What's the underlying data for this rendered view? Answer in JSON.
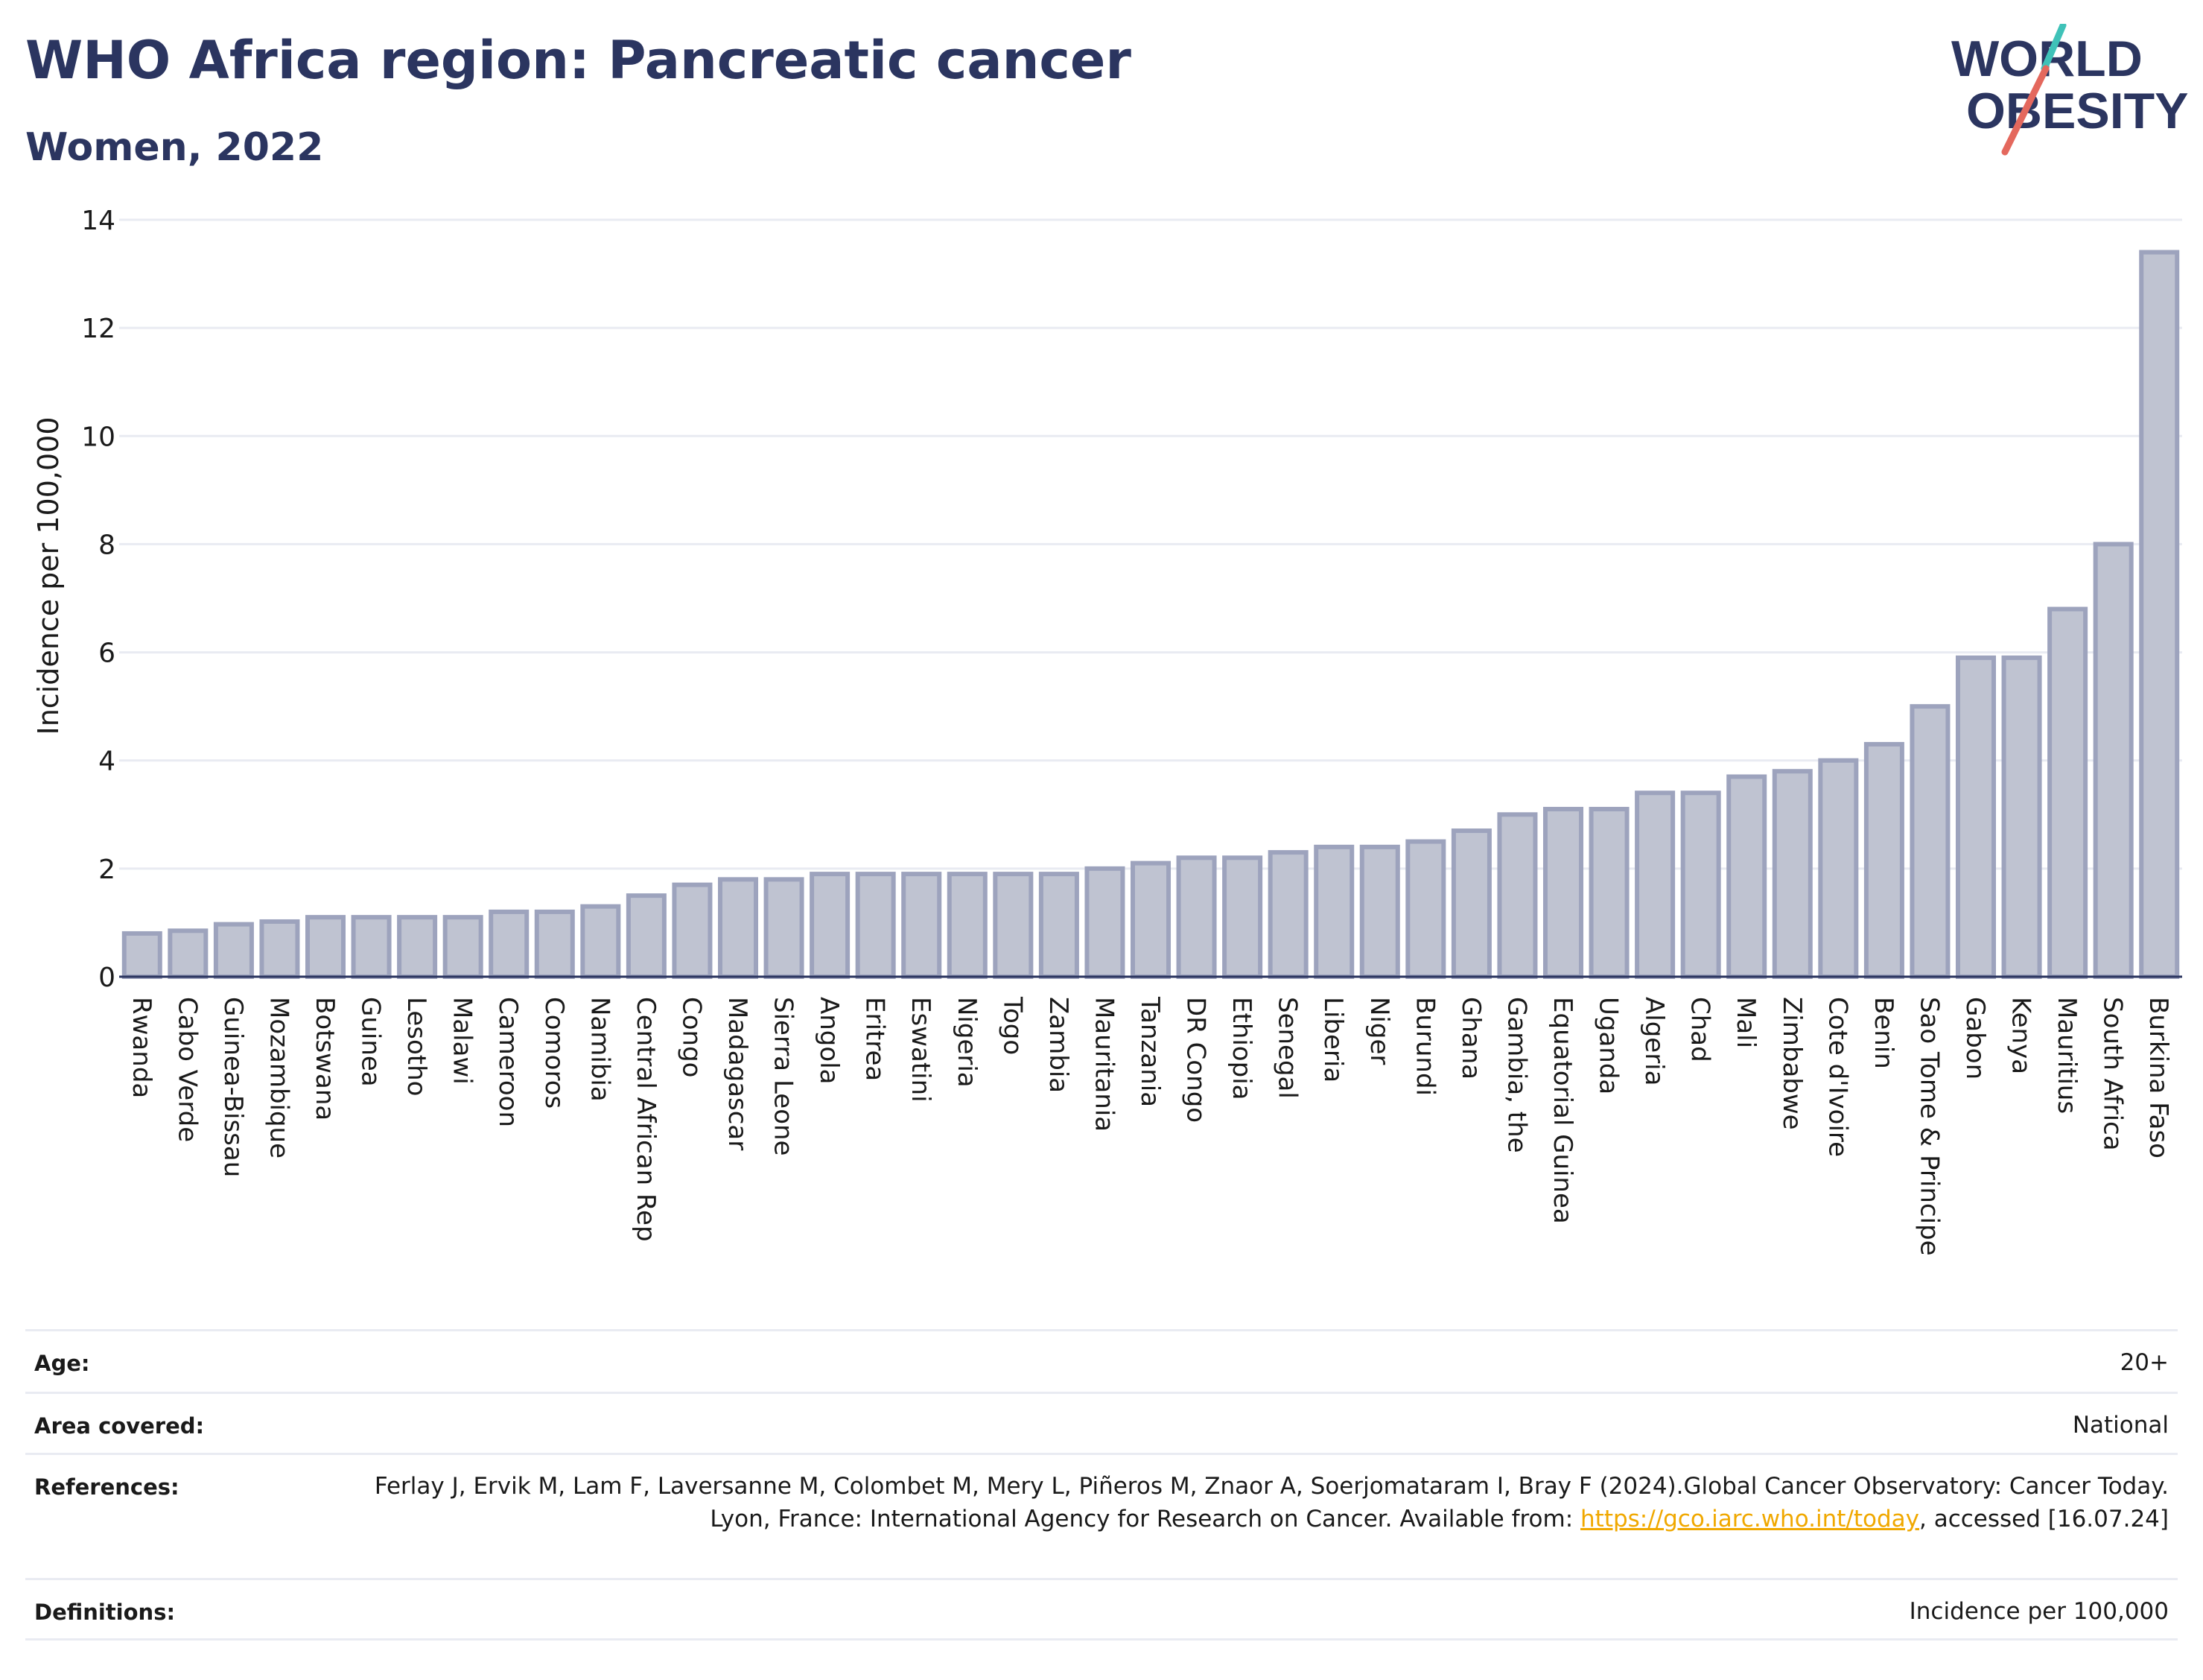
{
  "header": {
    "title": "WHO Africa region: Pancreatic cancer",
    "subtitle": "Women, 2022"
  },
  "logo": {
    "line1": "WORLD",
    "line2": "OBESITY",
    "colors": {
      "text": "#2b3560",
      "slash_red": "#e4685d",
      "slash_teal": "#3fc2b8"
    }
  },
  "chart_data": {
    "type": "bar",
    "title": "WHO Africa region: Pancreatic cancer",
    "subtitle": "Women, 2022",
    "xlabel": "",
    "ylabel": "Incidence per 100,000",
    "ylim": [
      0,
      14
    ],
    "yticks": [
      0,
      2,
      4,
      6,
      8,
      10,
      12,
      14
    ],
    "grid": true,
    "bar_color": "#bfc3d1",
    "bar_border": "#9da3bd",
    "categories": [
      "Rwanda",
      "Cabo Verde",
      "Guinea-Bissau",
      "Mozambique",
      "Botswana",
      "Guinea",
      "Lesotho",
      "Malawi",
      "Cameroon",
      "Comoros",
      "Namibia",
      "Central African Rep",
      "Congo",
      "Madagascar",
      "Sierra Leone",
      "Angola",
      "Eritrea",
      "Eswatini",
      "Nigeria",
      "Togo",
      "Zambia",
      "Mauritania",
      "Tanzania",
      "DR Congo",
      "Ethiopia",
      "Senegal",
      "Liberia",
      "Niger",
      "Burundi",
      "Ghana",
      "Gambia, the",
      "Equatorial Guinea",
      "Uganda",
      "Algeria",
      "Chad",
      "Mali",
      "Zimbabwe",
      "Cote d'Ivoire",
      "Benin",
      "Sao Tome & Principe",
      "Gabon",
      "Kenya",
      "Mauritius",
      "South Africa",
      "Burkina Faso"
    ],
    "values": [
      0.8,
      0.85,
      0.97,
      1.02,
      1.1,
      1.1,
      1.1,
      1.1,
      1.2,
      1.2,
      1.3,
      1.5,
      1.7,
      1.8,
      1.8,
      1.9,
      1.9,
      1.9,
      1.9,
      1.9,
      1.9,
      2.0,
      2.1,
      2.2,
      2.2,
      2.3,
      2.4,
      2.4,
      2.5,
      2.7,
      3.0,
      3.1,
      3.1,
      3.4,
      3.4,
      3.7,
      3.8,
      4.0,
      4.3,
      5.0,
      5.9,
      5.9,
      6.8,
      8.0,
      13.4
    ]
  },
  "meta": {
    "age_label": "Age:",
    "age_value": "20+",
    "area_label": "Area covered:",
    "area_value": "National",
    "ref_label": "References:",
    "ref_text_1": "Ferlay J, Ervik M, Lam F, Laversanne M, Colombet M, Mery L, Piñeros M, Znaor A, Soerjomataram I, Bray F (2024).Global Cancer Observatory: Cancer Today. Lyon, France: International Agency for Research on Cancer. Available from: ",
    "ref_link": "https://gco.iarc.who.int/today",
    "ref_text_2": ", accessed [16.07.24]",
    "def_label": "Definitions:",
    "def_value": "Incidence per 100,000"
  }
}
